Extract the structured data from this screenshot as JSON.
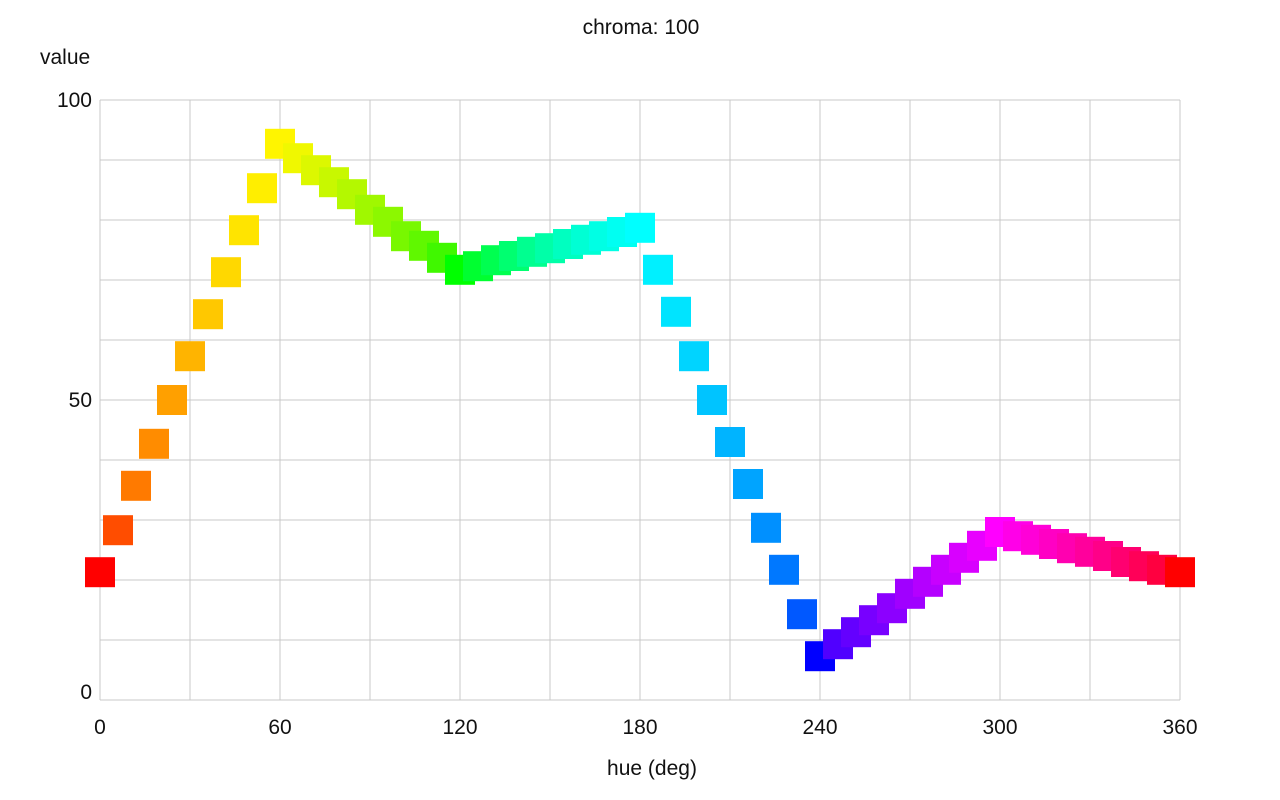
{
  "chart_data": {
    "type": "scatter",
    "title": "chroma: 100",
    "xlabel": "hue (deg)",
    "ylabel": "value",
    "xlim": [
      0,
      360
    ],
    "ylim": [
      0,
      100
    ],
    "x_ticks": [
      "0",
      "60",
      "120",
      "180",
      "240",
      "300",
      "360"
    ],
    "y_ticks": [
      "0",
      "50",
      "100"
    ],
    "grid": true,
    "marker": "square",
    "series": [
      {
        "x": [
          0,
          6,
          12,
          18,
          24,
          30,
          36,
          42,
          48,
          54,
          60,
          66,
          72,
          78,
          84,
          90,
          96,
          102,
          108,
          114,
          120,
          126,
          132,
          138,
          144,
          150,
          156,
          162,
          168,
          174,
          180,
          186,
          192,
          198,
          204,
          210,
          216,
          222,
          228,
          234,
          240,
          246,
          252,
          258,
          264,
          270,
          276,
          282,
          288,
          294,
          300,
          306,
          312,
          318,
          324,
          330,
          336,
          342,
          348,
          354,
          360
        ],
        "y": [
          21.3,
          28.3,
          35.7,
          42.7,
          50,
          57.3,
          64.3,
          71.3,
          78.3,
          85.3,
          92.7,
          90.3,
          88.3,
          86.3,
          84.3,
          81.7,
          79.7,
          77.3,
          75.7,
          73.7,
          71.7,
          72.3,
          73.3,
          74,
          74.7,
          75.3,
          76,
          76.7,
          77.3,
          78,
          78.7,
          71.7,
          64.7,
          57.3,
          50,
          43,
          36,
          28.7,
          21.7,
          14.3,
          7.3,
          9.3,
          11.3,
          13.3,
          15.3,
          17.7,
          19.7,
          21.7,
          23.7,
          25.7,
          28,
          27.3,
          26.7,
          26,
          25.3,
          24.7,
          24,
          23,
          22.3,
          21.7,
          21.3
        ],
        "colors": [
          "#ff0000",
          "#ff4d00",
          "#ff7a00",
          "#ff8c00",
          "#ffa000",
          "#ffb400",
          "#ffc800",
          "#ffd800",
          "#ffe400",
          "#ffee00",
          "#fff500",
          "#f0f800",
          "#dcf800",
          "#c8f800",
          "#b4f800",
          "#a0f800",
          "#8cf800",
          "#78f800",
          "#60f800",
          "#40f800",
          "#00ff00",
          "#00ff30",
          "#00ff50",
          "#00ff70",
          "#00ff90",
          "#00ffa8",
          "#00ffc0",
          "#00ffd4",
          "#00ffe4",
          "#00fff2",
          "#00ffff",
          "#00f0ff",
          "#00e4ff",
          "#00d4ff",
          "#00c4ff",
          "#00b4ff",
          "#00a4ff",
          "#0090ff",
          "#0078ff",
          "#0058ff",
          "#0000ff",
          "#5000ff",
          "#6400ff",
          "#7800ff",
          "#8c00ff",
          "#a000ff",
          "#b400ff",
          "#c800ff",
          "#d800ff",
          "#e800ff",
          "#ff00ff",
          "#ff00e8",
          "#ff00d8",
          "#ff00c4",
          "#ff00b0",
          "#ff009c",
          "#ff0088",
          "#ff0070",
          "#ff0058",
          "#ff0040",
          "#ff0000"
        ]
      }
    ]
  }
}
